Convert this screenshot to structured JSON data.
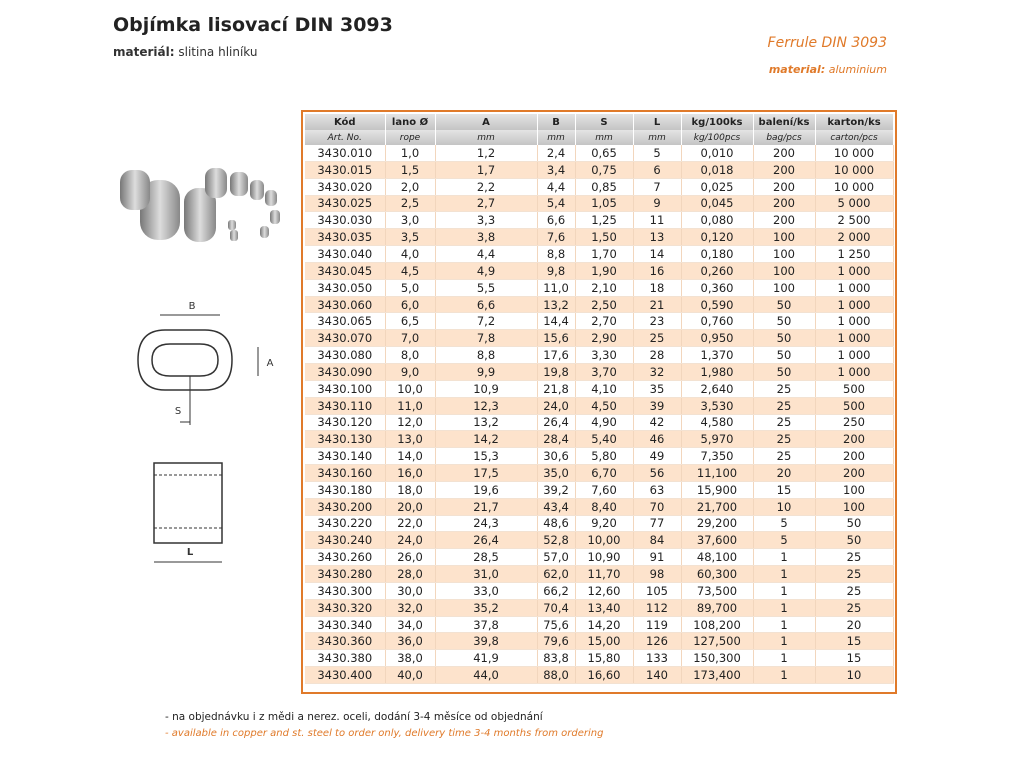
{
  "header": {
    "title": "Objímka lisovací DIN 3093",
    "material_label": "materiál:",
    "material": "slitina hliníku",
    "en_title": "Ferrule DIN 3093",
    "en_material_label": "material:",
    "en_material": "aluminium"
  },
  "diagram": {
    "b": "B",
    "a": "A",
    "s": "S",
    "l": "L"
  },
  "table": {
    "headers": [
      "Kód",
      "lano Ø",
      "A",
      "B",
      "S",
      "L",
      "kg/100ks",
      "balení/ks",
      "karton/ks"
    ],
    "subheaders": [
      "Art. No.",
      "rope",
      "mm",
      "mm",
      "mm",
      "mm",
      "kg/100pcs",
      "bag/pcs",
      "carton/pcs"
    ],
    "rows": [
      [
        "3430.010",
        "1,0",
        "1,2",
        "2,4",
        "0,65",
        "5",
        "0,010",
        "200",
        "10 000"
      ],
      [
        "3430.015",
        "1,5",
        "1,7",
        "3,4",
        "0,75",
        "6",
        "0,018",
        "200",
        "10 000"
      ],
      [
        "3430.020",
        "2,0",
        "2,2",
        "4,4",
        "0,85",
        "7",
        "0,025",
        "200",
        "10 000"
      ],
      [
        "3430.025",
        "2,5",
        "2,7",
        "5,4",
        "1,05",
        "9",
        "0,045",
        "200",
        "5 000"
      ],
      [
        "3430.030",
        "3,0",
        "3,3",
        "6,6",
        "1,25",
        "11",
        "0,080",
        "200",
        "2 500"
      ],
      [
        "3430.035",
        "3,5",
        "3,8",
        "7,6",
        "1,50",
        "13",
        "0,120",
        "100",
        "2 000"
      ],
      [
        "3430.040",
        "4,0",
        "4,4",
        "8,8",
        "1,70",
        "14",
        "0,180",
        "100",
        "1 250"
      ],
      [
        "3430.045",
        "4,5",
        "4,9",
        "9,8",
        "1,90",
        "16",
        "0,260",
        "100",
        "1 000"
      ],
      [
        "3430.050",
        "5,0",
        "5,5",
        "11,0",
        "2,10",
        "18",
        "0,360",
        "100",
        "1 000"
      ],
      [
        "3430.060",
        "6,0",
        "6,6",
        "13,2",
        "2,50",
        "21",
        "0,590",
        "50",
        "1 000"
      ],
      [
        "3430.065",
        "6,5",
        "7,2",
        "14,4",
        "2,70",
        "23",
        "0,760",
        "50",
        "1 000"
      ],
      [
        "3430.070",
        "7,0",
        "7,8",
        "15,6",
        "2,90",
        "25",
        "0,950",
        "50",
        "1 000"
      ],
      [
        "3430.080",
        "8,0",
        "8,8",
        "17,6",
        "3,30",
        "28",
        "1,370",
        "50",
        "1 000"
      ],
      [
        "3430.090",
        "9,0",
        "9,9",
        "19,8",
        "3,70",
        "32",
        "1,980",
        "50",
        "1 000"
      ],
      [
        "3430.100",
        "10,0",
        "10,9",
        "21,8",
        "4,10",
        "35",
        "2,640",
        "25",
        "500"
      ],
      [
        "3430.110",
        "11,0",
        "12,3",
        "24,0",
        "4,50",
        "39",
        "3,530",
        "25",
        "500"
      ],
      [
        "3430.120",
        "12,0",
        "13,2",
        "26,4",
        "4,90",
        "42",
        "4,580",
        "25",
        "250"
      ],
      [
        "3430.130",
        "13,0",
        "14,2",
        "28,4",
        "5,40",
        "46",
        "5,970",
        "25",
        "200"
      ],
      [
        "3430.140",
        "14,0",
        "15,3",
        "30,6",
        "5,80",
        "49",
        "7,350",
        "25",
        "200"
      ],
      [
        "3430.160",
        "16,0",
        "17,5",
        "35,0",
        "6,70",
        "56",
        "11,100",
        "20",
        "200"
      ],
      [
        "3430.180",
        "18,0",
        "19,6",
        "39,2",
        "7,60",
        "63",
        "15,900",
        "15",
        "100"
      ],
      [
        "3430.200",
        "20,0",
        "21,7",
        "43,4",
        "8,40",
        "70",
        "21,700",
        "10",
        "100"
      ],
      [
        "3430.220",
        "22,0",
        "24,3",
        "48,6",
        "9,20",
        "77",
        "29,200",
        "5",
        "50"
      ],
      [
        "3430.240",
        "24,0",
        "26,4",
        "52,8",
        "10,00",
        "84",
        "37,600",
        "5",
        "50"
      ],
      [
        "3430.260",
        "26,0",
        "28,5",
        "57,0",
        "10,90",
        "91",
        "48,100",
        "1",
        "25"
      ],
      [
        "3430.280",
        "28,0",
        "31,0",
        "62,0",
        "11,70",
        "98",
        "60,300",
        "1",
        "25"
      ],
      [
        "3430.300",
        "30,0",
        "33,0",
        "66,2",
        "12,60",
        "105",
        "73,500",
        "1",
        "25"
      ],
      [
        "3430.320",
        "32,0",
        "35,2",
        "70,4",
        "13,40",
        "112",
        "89,700",
        "1",
        "25"
      ],
      [
        "3430.340",
        "34,0",
        "37,8",
        "75,6",
        "14,20",
        "119",
        "108,200",
        "1",
        "20"
      ],
      [
        "3430.360",
        "36,0",
        "39,8",
        "79,6",
        "15,00",
        "126",
        "127,500",
        "1",
        "15"
      ],
      [
        "3430.380",
        "38,0",
        "41,9",
        "83,8",
        "15,80",
        "133",
        "150,300",
        "1",
        "15"
      ],
      [
        "3430.400",
        "40,0",
        "44,0",
        "88,0",
        "16,60",
        "140",
        "173,400",
        "1",
        "10"
      ]
    ]
  },
  "notes": [
    "- na objednávku i z mědi a nerez. oceli, dodání 3-4 měsíce od objednání",
    "- available in copper and st. steel to order only, delivery time 3-4 months from ordering"
  ]
}
